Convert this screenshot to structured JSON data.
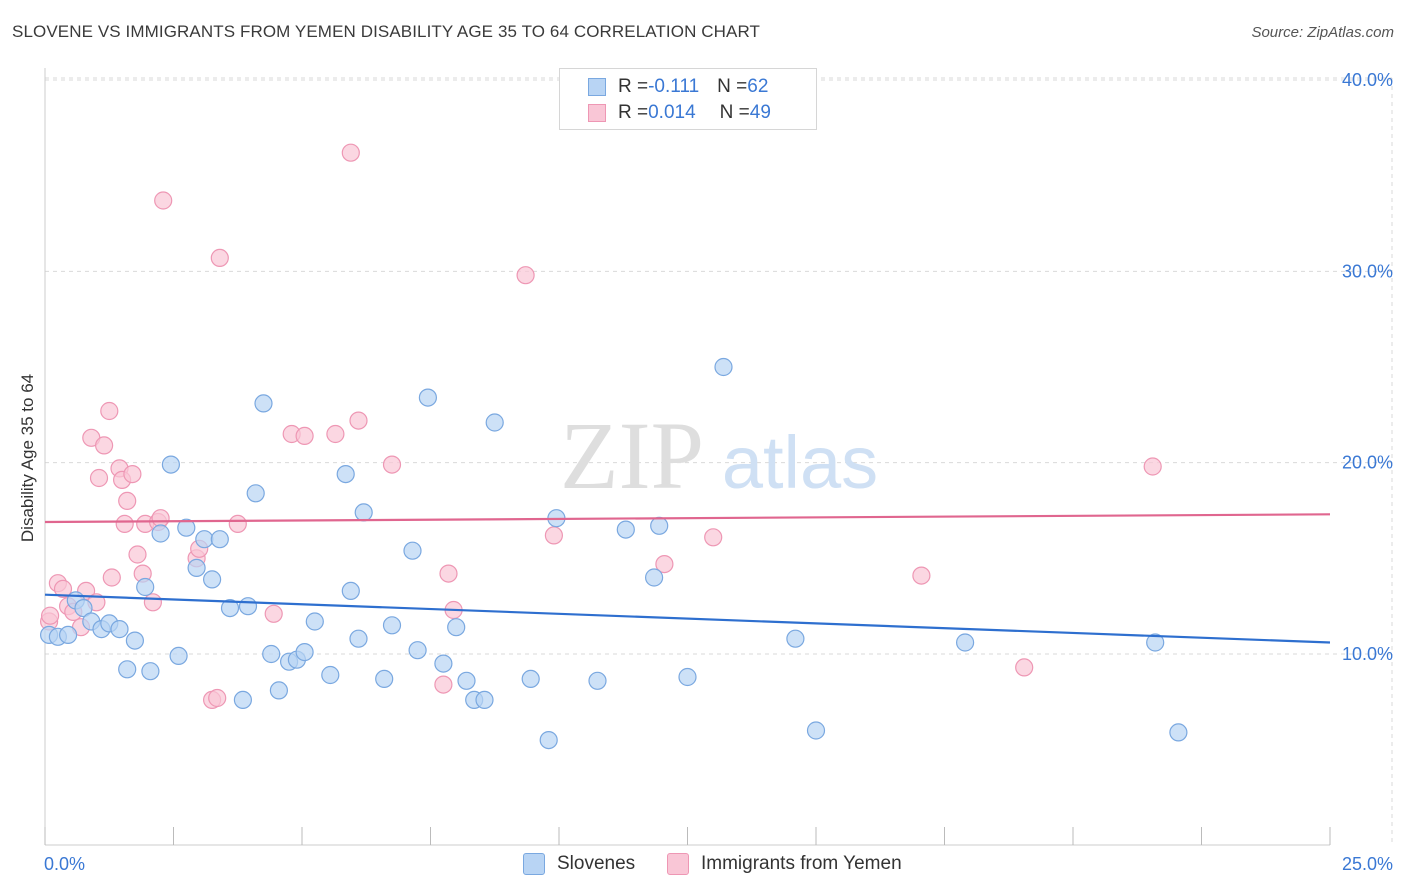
{
  "title": "SLOVENE VS IMMIGRANTS FROM YEMEN DISABILITY AGE 35 TO 64 CORRELATION CHART",
  "source": "Source: ZipAtlas.com",
  "watermark": {
    "zip": "ZIP",
    "atlas": "atlas"
  },
  "legend": {
    "rows": [
      {
        "r_label": "R = ",
        "r_value": "-0.111",
        "n_label": "N = ",
        "n_value": "62"
      },
      {
        "r_label": "R = ",
        "r_value": "0.014",
        "n_label": "N = ",
        "n_value": "49"
      }
    ]
  },
  "colors": {
    "blue_fill": "#b8d4f4",
    "blue_stroke": "#7aa8e0",
    "blue_line": "#2e6fcf",
    "pink_fill": "#f9c6d6",
    "pink_stroke": "#ee97b4",
    "pink_line": "#e0668f",
    "tick_text": "#3a78d4"
  },
  "chart_data": {
    "type": "scatter",
    "title": "SLOVENE VS IMMIGRANTS FROM YEMEN DISABILITY AGE 35 TO 64 CORRELATION CHART",
    "xlabel": "",
    "ylabel": "Disability Age 35 to 64",
    "xlim": [
      0,
      25
    ],
    "ylim": [
      0,
      42
    ],
    "x_tick_labels": [
      "0.0%",
      "25.0%"
    ],
    "y_ticks": [
      10,
      20,
      30,
      40
    ],
    "y_tick_labels": [
      "10.0%",
      "20.0%",
      "30.0%",
      "40.0%"
    ],
    "grid": true,
    "series": [
      {
        "name": "Slovenes",
        "color": "blue",
        "trend": {
          "x": [
            0,
            25
          ],
          "y": [
            13.1,
            10.6
          ]
        },
        "points": [
          [
            0.08,
            11.0
          ],
          [
            0.25,
            10.9
          ],
          [
            0.45,
            11.0
          ],
          [
            0.6,
            12.8
          ],
          [
            0.75,
            12.4
          ],
          [
            0.9,
            11.7
          ],
          [
            1.1,
            11.3
          ],
          [
            1.25,
            11.6
          ],
          [
            1.45,
            11.3
          ],
          [
            1.6,
            9.2
          ],
          [
            1.75,
            10.7
          ],
          [
            1.95,
            13.5
          ],
          [
            2.05,
            9.1
          ],
          [
            2.25,
            16.3
          ],
          [
            2.45,
            19.9
          ],
          [
            2.6,
            9.9
          ],
          [
            2.75,
            16.6
          ],
          [
            2.95,
            14.5
          ],
          [
            3.1,
            16.0
          ],
          [
            3.25,
            13.9
          ],
          [
            3.4,
            16.0
          ],
          [
            3.6,
            12.4
          ],
          [
            3.85,
            7.6
          ],
          [
            3.95,
            12.5
          ],
          [
            4.1,
            18.4
          ],
          [
            4.25,
            23.1
          ],
          [
            4.4,
            10.0
          ],
          [
            4.55,
            8.1
          ],
          [
            4.75,
            9.6
          ],
          [
            4.9,
            9.7
          ],
          [
            5.05,
            10.1
          ],
          [
            5.25,
            11.7
          ],
          [
            5.55,
            8.9
          ],
          [
            5.85,
            19.4
          ],
          [
            5.95,
            13.3
          ],
          [
            6.1,
            10.8
          ],
          [
            6.2,
            17.4
          ],
          [
            6.6,
            8.7
          ],
          [
            6.75,
            11.5
          ],
          [
            7.15,
            15.4
          ],
          [
            7.25,
            10.2
          ],
          [
            7.45,
            23.4
          ],
          [
            7.75,
            9.5
          ],
          [
            8.0,
            11.4
          ],
          [
            8.2,
            8.6
          ],
          [
            8.35,
            7.6
          ],
          [
            8.55,
            7.6
          ],
          [
            8.75,
            22.1
          ],
          [
            9.45,
            8.7
          ],
          [
            9.8,
            5.5
          ],
          [
            9.95,
            17.1
          ],
          [
            10.75,
            8.6
          ],
          [
            11.3,
            16.5
          ],
          [
            11.85,
            14.0
          ],
          [
            11.95,
            16.7
          ],
          [
            12.5,
            8.8
          ],
          [
            13.2,
            25.0
          ],
          [
            14.6,
            10.8
          ],
          [
            15.0,
            6.0
          ],
          [
            17.9,
            10.6
          ],
          [
            21.6,
            10.6
          ],
          [
            22.05,
            5.9
          ]
        ]
      },
      {
        "name": "Immigrants from Yemen",
        "color": "pink",
        "trend": {
          "x": [
            0,
            25
          ],
          "y": [
            16.9,
            17.3
          ]
        },
        "points": [
          [
            0.08,
            11.7
          ],
          [
            0.25,
            13.7
          ],
          [
            0.35,
            13.4
          ],
          [
            0.45,
            12.5
          ],
          [
            0.55,
            12.2
          ],
          [
            0.7,
            11.4
          ],
          [
            0.8,
            13.3
          ],
          [
            0.9,
            21.3
          ],
          [
            1.0,
            12.7
          ],
          [
            1.05,
            19.2
          ],
          [
            1.15,
            20.9
          ],
          [
            1.25,
            22.7
          ],
          [
            1.3,
            14.0
          ],
          [
            1.45,
            19.7
          ],
          [
            1.5,
            19.1
          ],
          [
            1.55,
            16.8
          ],
          [
            1.6,
            18.0
          ],
          [
            1.7,
            19.4
          ],
          [
            1.8,
            15.2
          ],
          [
            1.9,
            14.2
          ],
          [
            1.95,
            16.8
          ],
          [
            2.1,
            12.7
          ],
          [
            2.2,
            16.9
          ],
          [
            2.25,
            17.1
          ],
          [
            2.3,
            33.7
          ],
          [
            2.95,
            15.0
          ],
          [
            3.0,
            15.5
          ],
          [
            3.25,
            7.6
          ],
          [
            3.35,
            7.7
          ],
          [
            3.4,
            30.7
          ],
          [
            3.75,
            16.8
          ],
          [
            4.45,
            12.1
          ],
          [
            4.8,
            21.5
          ],
          [
            5.05,
            21.4
          ],
          [
            5.65,
            21.5
          ],
          [
            5.95,
            36.2
          ],
          [
            6.1,
            22.2
          ],
          [
            6.75,
            19.9
          ],
          [
            7.75,
            8.4
          ],
          [
            7.85,
            14.2
          ],
          [
            7.95,
            12.3
          ],
          [
            9.35,
            29.8
          ],
          [
            9.9,
            16.2
          ],
          [
            12.05,
            14.7
          ],
          [
            13.0,
            16.1
          ],
          [
            17.05,
            14.1
          ],
          [
            19.05,
            9.3
          ],
          [
            21.55,
            19.8
          ],
          [
            0.1,
            12.0
          ]
        ]
      }
    ]
  },
  "bottom_legend": {
    "items": [
      {
        "label": "Slovenes"
      },
      {
        "label": "Immigrants from Yemen"
      }
    ]
  }
}
